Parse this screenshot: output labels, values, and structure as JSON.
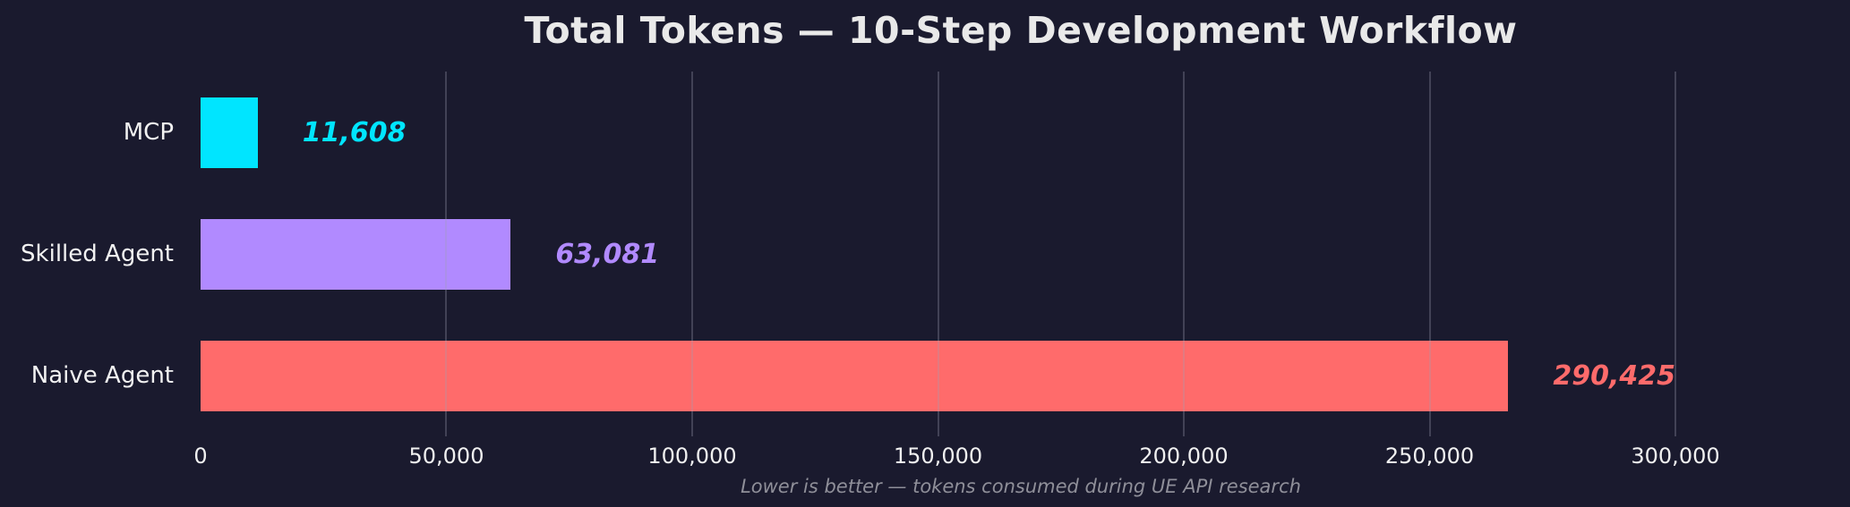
{
  "chart": {
    "title": "Total Tokens — 10-Step Development Workflow",
    "caption": "Lower is better — tokens consumed during UE API research"
  },
  "chart_data": {
    "type": "bar",
    "orientation": "horizontal",
    "title": "Total Tokens — 10-Step Development Workflow",
    "annotation": "Lower is better — tokens consumed during UE API research",
    "categories": [
      "MCP",
      "Skilled Agent",
      "Naive Agent"
    ],
    "values": [
      11608,
      63081,
      290425
    ],
    "value_labels": [
      "11,608",
      "63,081",
      "290,425"
    ],
    "bar_colors": [
      "#00e5ff",
      "#b18aff",
      "#ff6b6b"
    ],
    "xlabel": "",
    "ylabel": "",
    "xlim": [
      0,
      300000
    ],
    "xticks": [
      0,
      50000,
      100000,
      150000,
      200000,
      250000,
      300000
    ],
    "xtick_labels": [
      "0",
      "50,000",
      "100,000",
      "150,000",
      "200,000",
      "250,000",
      "300,000"
    ],
    "grid": true,
    "legend": false,
    "background_color": "#1a1a2e",
    "text_color": "#f0f0f0"
  }
}
